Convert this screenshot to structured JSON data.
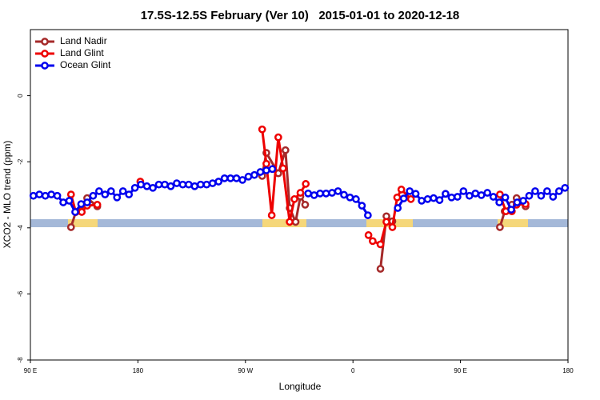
{
  "chart_data": {
    "type": "line",
    "title": "17.5S-12.5S February (Ver 10)   2015-01-01 to 2020-12-18",
    "xlabel": "Longitude",
    "ylabel": "XCO2 - MLO trend (ppm)",
    "xlim": [
      90,
      540
    ],
    "ylim": [
      -8,
      2
    ],
    "xticks": [
      {
        "value": 90,
        "label": "90 E"
      },
      180,
      {
        "value": 270,
        "label": "90 W"
      },
      {
        "value": 360,
        "label": "0"
      },
      {
        "value": 450,
        "label": "90 E"
      },
      {
        "value": 540,
        "label": "180"
      }
    ],
    "yticks": [
      -8,
      -6,
      -4,
      -2,
      0
    ],
    "legend": "upper left",
    "series": [
      {
        "name": "Land Nadir",
        "color": "#a52a2a",
        "x": [
          124,
          128,
          133,
          137.5,
          146,
          215,
          284,
          287.5,
          297.5,
          303.5,
          307,
          312,
          316,
          320,
          350,
          383,
          388,
          393,
          440,
          483,
          487,
          493,
          497,
          504.5
        ],
        "values": [
          -3.98,
          -3.52,
          -3.3,
          -3.1,
          -3.35,
          null,
          -2.43,
          -1.73,
          -2.35,
          -1.65,
          -3.4,
          -3.82,
          -3.05,
          -3.3,
          null,
          -5.24,
          -3.65,
          -3.8,
          null,
          -3.98,
          -3.5,
          -3.3,
          -3.1,
          -3.35
        ]
      },
      {
        "name": "Land Glint",
        "color": "#ee0000",
        "x": [
          124,
          128,
          133,
          137.5,
          146,
          160,
          182,
          230,
          284,
          287.5,
          292,
          297.5,
          301.5,
          307,
          311,
          316,
          320.5,
          350,
          373,
          376.5,
          383,
          388,
          393,
          397,
          400.5,
          408.5,
          440,
          483,
          488,
          493,
          497,
          504.5
        ],
        "values": [
          -2.99,
          -3.52,
          -3.52,
          -3.33,
          -3.3,
          null,
          -2.6,
          null,
          -1.02,
          -2.06,
          -3.62,
          -1.26,
          -2.2,
          -3.82,
          -3.13,
          -2.94,
          -2.67,
          null,
          -4.22,
          -4.4,
          -4.5,
          -3.82,
          -3.98,
          -3.08,
          -2.84,
          -3.13,
          null,
          -2.99,
          -3.5,
          -3.5,
          -3.3,
          -3.28
        ]
      },
      {
        "name": "Ocean Glint",
        "color": "#0000ee",
        "x": [
          92.5,
          97.5,
          102.5,
          107.5,
          112.5,
          117.5,
          122.5,
          127.5,
          132.5,
          137.5,
          142.5,
          147.5,
          152.5,
          157.5,
          162.5,
          167.5,
          172.5,
          177.5,
          182.5,
          187.5,
          192.5,
          197.5,
          202.5,
          207.5,
          212.5,
          217.5,
          222.5,
          227.5,
          232.5,
          237.5,
          242.5,
          247.5,
          252.5,
          257.5,
          262.5,
          267.5,
          272.5,
          277.5,
          282.5,
          287.5,
          292.5,
          297.5,
          322.5,
          327.5,
          332.5,
          337.5,
          342.5,
          347.5,
          352.5,
          357.5,
          362.5,
          367.5,
          372.5,
          377.5,
          397.5,
          402.5,
          407.5,
          412.5,
          417.5,
          422.5,
          427.5,
          432.5,
          437.5,
          442.5,
          447.5,
          452.5,
          457.5,
          462.5,
          467.5,
          472.5,
          477.5,
          482.5,
          487.5,
          492.5,
          497.5,
          502.5,
          507.5,
          512.5,
          517.5,
          522.5,
          527.5,
          532.5,
          537.5
        ],
        "values": [
          -3.03,
          -2.99,
          -3.03,
          -2.99,
          -3.03,
          -3.23,
          -3.18,
          -3.52,
          -3.28,
          -3.23,
          -3.03,
          -2.89,
          -2.99,
          -2.89,
          -3.08,
          -2.89,
          -2.99,
          -2.79,
          -2.69,
          -2.74,
          -2.79,
          -2.69,
          -2.69,
          -2.74,
          -2.65,
          -2.69,
          -2.69,
          -2.74,
          -2.69,
          -2.69,
          -2.65,
          -2.6,
          -2.5,
          -2.5,
          -2.5,
          -2.55,
          -2.45,
          -2.4,
          -2.31,
          -2.26,
          -2.22,
          null,
          -2.96,
          -3.01,
          -2.96,
          -2.96,
          -2.94,
          -2.89,
          -3.0,
          -3.08,
          -3.13,
          -3.33,
          -3.62,
          null,
          -3.4,
          -3.11,
          -2.89,
          -2.97,
          -3.18,
          -3.13,
          -3.1,
          -3.16,
          -2.97,
          -3.08,
          -3.06,
          -2.89,
          -3.03,
          -2.96,
          -3.01,
          -2.94,
          -3.06,
          -3.23,
          -3.08,
          -3.45,
          -3.23,
          -3.18,
          -3.03,
          -2.89,
          -3.03,
          -2.89,
          -3.06,
          -2.89,
          -2.79
        ]
      }
    ]
  }
}
